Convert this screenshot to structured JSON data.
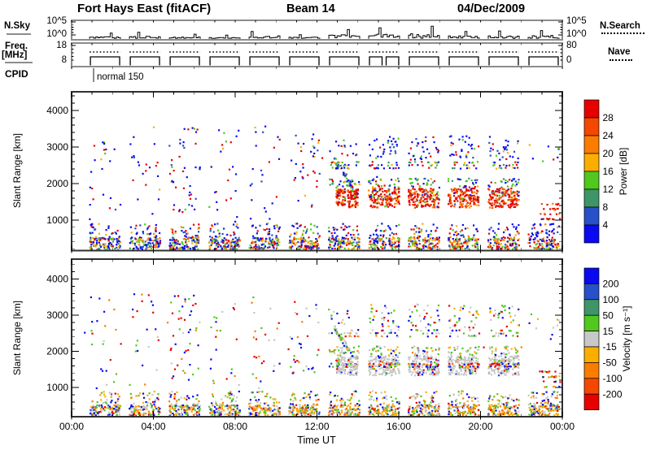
{
  "header": {
    "title": "Fort Hays East (fitACF)",
    "beam": "Beam 14",
    "date": "04/Dec/2009"
  },
  "panel_labels": {
    "nsky": "N.Sky",
    "nsearch": "N.Search",
    "freq1": "Freq.",
    "freq2": "[MHz]",
    "nave": "Nave",
    "cpid": "CPID",
    "cpid_value": "normal 150"
  },
  "axis_labels": {
    "noise_top": "10^5",
    "noise_bottom": "10^0",
    "freq_top": "18",
    "freq_bottom": "8",
    "nave_top": "80",
    "nave_bottom": "0",
    "x_title": "Time UT",
    "y_title": "Slant Range [km]",
    "x_ticks": [
      "00:00",
      "04:00",
      "08:00",
      "12:00",
      "16:00",
      "20:00",
      "00:00"
    ],
    "y_ticks": [
      "1000",
      "2000",
      "3000",
      "4000"
    ]
  },
  "power_scale": {
    "title": "Power [dB]",
    "labels": [
      "28",
      "24",
      "20",
      "16",
      "12",
      "8",
      "4"
    ],
    "colors_top_to_bottom": [
      "#e60000",
      "#f44800",
      "#fa7d00",
      "#fcae00",
      "#50c81e",
      "#3e9668",
      "#2850c8",
      "#0a0af0"
    ]
  },
  "velocity_scale": {
    "title": "Velocity [m s⁻¹]",
    "labels": [
      "200",
      "100",
      "50",
      "15",
      "-15",
      "-50",
      "-100",
      "-200"
    ],
    "colors_top_to_bottom": [
      "#0a0af0",
      "#2850c8",
      "#3e9668",
      "#50c81e",
      "#c8c8c8",
      "#fcae00",
      "#fa7d00",
      "#f44800",
      "#e60000"
    ]
  },
  "chart_data": {
    "type": "scatter",
    "title": "Fort Hays East (fitACF) Beam 14 04/Dec/2009",
    "xlabel": "Time UT",
    "ylabel": "Slant Range [km]",
    "x_range_hours": [
      0,
      24
    ],
    "x_tick_hours": [
      0,
      4,
      8,
      12,
      16,
      20,
      24
    ],
    "range_km_ticks": [
      1000,
      2000,
      3000,
      4000
    ],
    "power_db_thresholds": [
      28,
      24,
      20,
      16,
      12,
      8,
      4
    ],
    "velocity_ms_thresholds": [
      200,
      100,
      50,
      15,
      -15,
      -50,
      -100,
      -200
    ],
    "cpid": "normal 150",
    "groups_ut": [
      [
        0.88,
        2.39
      ],
      [
        2.83,
        4.34
      ],
      [
        4.78,
        6.29
      ],
      [
        6.73,
        8.24
      ],
      [
        8.68,
        10.19
      ],
      [
        10.63,
        12.14
      ],
      [
        12.58,
        14.09
      ],
      [
        14.53,
        16.04
      ],
      [
        16.48,
        17.99
      ],
      [
        18.43,
        19.94
      ],
      [
        20.38,
        21.89
      ],
      [
        22.33,
        23.84
      ]
    ],
    "noise_panel": {
      "label": "N.Sky / N.Search",
      "scale": "log 10^0 .. 10^5",
      "group_peaks": [
        0.3,
        0.35,
        0.22,
        0.15,
        0.42,
        0.18,
        0.55,
        0.68,
        0.8,
        0.42,
        0.45,
        0.48
      ]
    },
    "freq_panel": {
      "label": "Freq [MHz]",
      "freq_mhz": 10.5,
      "nave": 55,
      "split_group_index": 7
    },
    "point_colors": {
      "red": "#e60000",
      "ored": "#f44800",
      "orange": "#fa7d00",
      "amber": "#fcae00",
      "green": "#50c81e",
      "seagreen": "#3e9668",
      "medblue": "#2850c8",
      "blue": "#0a0af0",
      "grey": "#c8c8c8"
    },
    "palettes": {
      "pwr_low": {
        "blue": 0.3,
        "medblue": 0.12,
        "green": 0.16,
        "seagreen": 0.08,
        "amber": 0.12,
        "orange": 0.1,
        "red": 0.12
      },
      "pwr_low_warm": {
        "blue": 0.22,
        "medblue": 0.08,
        "green": 0.14,
        "seagreen": 0.06,
        "amber": 0.16,
        "orange": 0.16,
        "red": 0.18
      },
      "pwr_low_hi": {
        "blue": 0.45,
        "medblue": 0.15,
        "red": 0.15,
        "green": 0.12,
        "amber": 0.08,
        "orange": 0.05
      },
      "pwr_sparse": {
        "blue": 0.52,
        "medblue": 0.12,
        "red": 0.24,
        "green": 0.07,
        "amber": 0.05
      },
      "pwr_core": {
        "red": 0.52,
        "ored": 0.18,
        "orange": 0.14,
        "amber": 0.06,
        "green": 0.05,
        "medblue": 0.03,
        "blue": 0.02
      },
      "pwr_fringe": {
        "green": 0.3,
        "seagreen": 0.18,
        "blue": 0.22,
        "medblue": 0.1,
        "amber": 0.1,
        "red": 0.1
      },
      "pwr_rows": {
        "blue": 0.3,
        "green": 0.22,
        "red": 0.2,
        "amber": 0.14,
        "seagreen": 0.14
      },
      "pwr_high": {
        "blue": 0.55,
        "medblue": 0.15,
        "green": 0.12,
        "red": 0.1,
        "amber": 0.08
      },
      "pwr_end": {
        "red": 0.55,
        "ored": 0.15,
        "orange": 0.1,
        "green": 0.1,
        "blue": 0.1
      },
      "pwr_arc": {
        "blue": 0.4,
        "medblue": 0.15,
        "green": 0.2,
        "seagreen": 0.1,
        "red": 0.08,
        "amber": 0.07
      },
      "pwr_stray": {
        "red": 0.6,
        "blue": 0.4
      },
      "vel_low": {
        "green": 0.22,
        "grey": 0.18,
        "amber": 0.2,
        "orange": 0.12,
        "red": 0.07,
        "blue": 0.13,
        "medblue": 0.08
      },
      "vel_low_orange": {
        "amber": 0.26,
        "orange": 0.22,
        "green": 0.16,
        "grey": 0.14,
        "red": 0.06,
        "blue": 0.1,
        "medblue": 0.06
      },
      "vel_low_hi": {
        "green": 0.2,
        "grey": 0.2,
        "amber": 0.2,
        "blue": 0.2,
        "red": 0.1,
        "orange": 0.1
      },
      "vel_sparse": {
        "blue": 0.3,
        "red": 0.22,
        "green": 0.2,
        "grey": 0.13,
        "orange": 0.15
      },
      "vel_core": {
        "grey": 0.8,
        "red": 0.05,
        "blue": 0.04,
        "orange": 0.04,
        "green": 0.04,
        "medblue": 0.03
      },
      "vel_row": {
        "red": 0.28,
        "blue": 0.22,
        "orange": 0.18,
        "green": 0.14,
        "medblue": 0.1,
        "amber": 0.08
      },
      "vel_fringe": {
        "green": 0.28,
        "grey": 0.26,
        "amber": 0.18,
        "orange": 0.1,
        "blue": 0.1,
        "seagreen": 0.08
      },
      "vel_rows": {
        "grey": 0.3,
        "green": 0.25,
        "blue": 0.2,
        "orange": 0.15,
        "red": 0.1
      },
      "vel_high": {
        "grey": 0.28,
        "green": 0.24,
        "blue": 0.2,
        "amber": 0.16,
        "red": 0.12
      },
      "vel_end": {
        "red": 0.3,
        "orange": 0.25,
        "green": 0.2,
        "amber": 0.15,
        "blue": 0.1
      },
      "vel_arc": {
        "grey": 0.35,
        "green": 0.28,
        "blue": 0.15,
        "amber": 0.12,
        "seagreen": 0.1
      },
      "vel_stray": {
        "red": 0.5,
        "blue": 0.3,
        "orange": 0.2
      }
    },
    "power_panel": {
      "per_group": [
        {
          "groups": [
            0,
            1,
            2,
            3
          ],
          "dr": [
            170,
            520
          ],
          "n": 100,
          "p": "pwr_low"
        },
        {
          "groups": [
            4,
            5,
            6,
            7,
            8,
            9,
            10,
            11
          ],
          "dr": [
            170,
            520
          ],
          "n": 100,
          "p": "pwr_low_warm"
        },
        {
          "groups": "all",
          "dr": [
            520,
            900
          ],
          "n": 26,
          "p": "pwr_low_hi"
        },
        {
          "groups": [
            0,
            1,
            3,
            4
          ],
          "dr": [
            900,
            3600
          ],
          "n": 22,
          "p": "pwr_sparse"
        },
        {
          "groups": [
            2
          ],
          "dr": [
            1000,
            3550
          ],
          "n": 46,
          "p": "pwr_sparse"
        },
        {
          "groups": [
            5
          ],
          "dr": [
            1300,
            3400
          ],
          "n": 32,
          "p": "pwr_sparse"
        },
        {
          "groups": [
            7,
            8,
            9,
            10
          ],
          "dr": [
            1330,
            1870
          ],
          "n": 150,
          "p": "pwr_core"
        },
        {
          "groups": [
            6,
            7,
            8,
            9,
            10
          ],
          "dr": [
            1880,
            2140
          ],
          "n": 24,
          "p": "pwr_fringe"
        },
        {
          "groups": [
            6,
            7,
            8,
            9,
            10
          ],
          "dr": [
            2380,
            2620
          ],
          "n": 20,
          "p": "pwr_rows",
          "rows": 3
        },
        {
          "groups": [
            7,
            8,
            9,
            10
          ],
          "dr": [
            2650,
            3300
          ],
          "n": 30,
          "p": "pwr_high"
        },
        {
          "groups": [
            6
          ],
          "dr": [
            2750,
            3200
          ],
          "n": 14,
          "p": "pwr_high"
        },
        {
          "groups": [
            11
          ],
          "dr": [
            2600,
            3100
          ],
          "n": 8,
          "p": "pwr_high"
        }
      ],
      "extras": [
        {
          "t": [
            12.95,
            13.38
          ],
          "r": [
            1380,
            1850
          ],
          "n": 70,
          "p": "pwr_core"
        },
        {
          "t": [
            13.5,
            14.02
          ],
          "r": [
            1330,
            1870
          ],
          "n": 75,
          "p": "pwr_core"
        },
        {
          "t": [
            22.9,
            23.9
          ],
          "r": [
            950,
            1500
          ],
          "n": 30,
          "p": "pwr_end",
          "rows": 4
        },
        {
          "t": [
            22.5,
            23.8
          ],
          "r": [
            500,
            950
          ],
          "n": 12,
          "p": "pwr_sparse"
        }
      ],
      "arcs": [
        {
          "t": [
            12.85,
            13.75
          ],
          "r": [
            2650,
            1900
          ],
          "spread": 150,
          "n": 44,
          "p": "pwr_arc"
        }
      ],
      "stray": {
        "n": 14,
        "r": [
          1800,
          3000
        ],
        "p": "pwr_stray"
      }
    },
    "velocity_panel": {
      "per_group": [
        {
          "groups": [
            0,
            1,
            2,
            3
          ],
          "dr": [
            200,
            520
          ],
          "n": 100,
          "p": "vel_low"
        },
        {
          "groups": [
            4,
            5,
            6,
            7,
            8,
            9,
            10,
            11
          ],
          "dr": [
            200,
            520
          ],
          "n": 100,
          "p": "vel_low_orange"
        },
        {
          "groups": "all",
          "dr": [
            520,
            900
          ],
          "n": 26,
          "p": "vel_low_hi"
        },
        {
          "groups": [
            0,
            1,
            3,
            4
          ],
          "dr": [
            900,
            3600
          ],
          "n": 22,
          "p": "vel_sparse"
        },
        {
          "groups": [
            2
          ],
          "dr": [
            1000,
            3550
          ],
          "n": 46,
          "p": "vel_sparse"
        },
        {
          "groups": [
            5
          ],
          "dr": [
            1300,
            3400
          ],
          "n": 32,
          "p": "vel_sparse"
        },
        {
          "groups": [
            7,
            8,
            9,
            10
          ],
          "dr": [
            1330,
            1870
          ],
          "n": 150,
          "p": "vel_core"
        },
        {
          "groups": [
            6,
            7,
            8,
            9,
            10
          ],
          "dr": [
            1540,
            1680
          ],
          "n": 24,
          "p": "vel_row",
          "rows": 2
        },
        {
          "groups": [
            6,
            7,
            8,
            9,
            10
          ],
          "dr": [
            1880,
            2140
          ],
          "n": 26,
          "p": "vel_fringe"
        },
        {
          "groups": [
            6,
            7,
            8,
            9,
            10
          ],
          "dr": [
            2380,
            2620
          ],
          "n": 18,
          "p": "vel_rows",
          "rows": 3
        },
        {
          "groups": [
            7,
            8,
            9,
            10
          ],
          "dr": [
            2650,
            3300
          ],
          "n": 28,
          "p": "vel_high"
        },
        {
          "groups": [
            6
          ],
          "dr": [
            2750,
            3200
          ],
          "n": 12,
          "p": "vel_high"
        },
        {
          "groups": [
            11
          ],
          "dr": [
            2600,
            3100
          ],
          "n": 8,
          "p": "vel_high"
        }
      ],
      "extras": [
        {
          "t": [
            12.95,
            13.38
          ],
          "r": [
            1380,
            1850
          ],
          "n": 70,
          "p": "vel_core"
        },
        {
          "t": [
            13.5,
            14.02
          ],
          "r": [
            1330,
            1870
          ],
          "n": 75,
          "p": "vel_core"
        },
        {
          "t": [
            22.9,
            23.9
          ],
          "r": [
            950,
            1500
          ],
          "n": 30,
          "p": "vel_end",
          "rows": 4
        },
        {
          "t": [
            22.5,
            23.8
          ],
          "r": [
            500,
            950
          ],
          "n": 12,
          "p": "vel_sparse"
        }
      ],
      "arcs": [
        {
          "t": [
            12.85,
            13.75
          ],
          "r": [
            2650,
            1900
          ],
          "spread": 150,
          "n": 44,
          "p": "vel_arc"
        }
      ],
      "stray": {
        "n": 14,
        "r": [
          1800,
          3000
        ],
        "p": "vel_stray"
      }
    }
  }
}
